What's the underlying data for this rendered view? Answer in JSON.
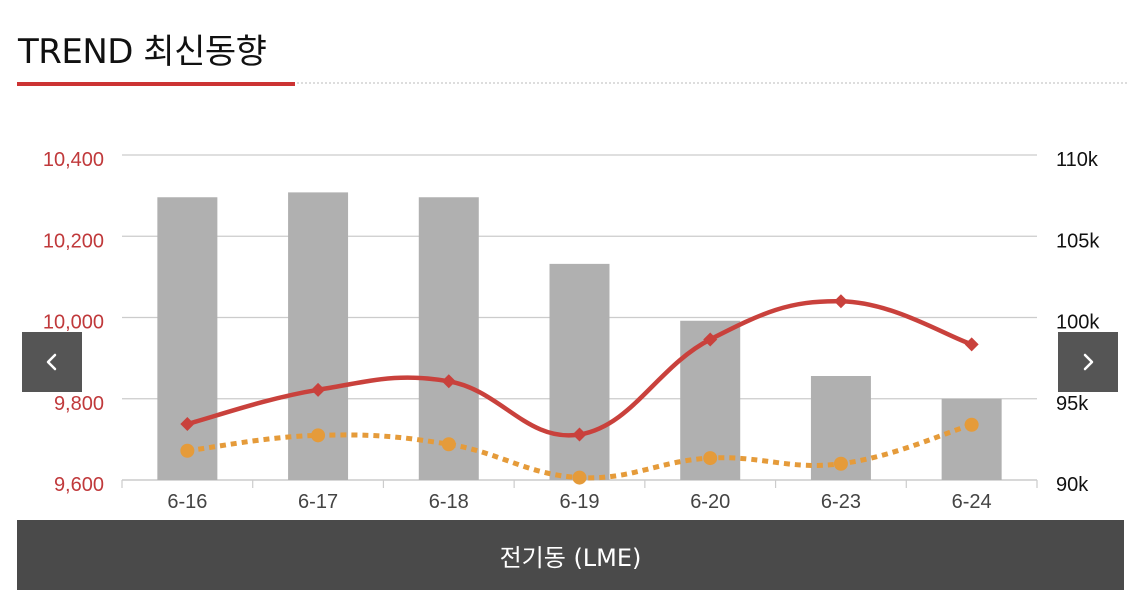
{
  "header": {
    "title": "TREND 최신동향"
  },
  "footer": {
    "label": "전기동 (LME)"
  },
  "colors": {
    "price_line": "#c9413c",
    "dotted_line": "#e59b3a",
    "bars": "#b0b0b0",
    "left_axis_text": "#c0393b",
    "grid": "#cccccc"
  },
  "nav": {
    "prev_icon": "chevron-left-icon",
    "next_icon": "chevron-right-icon"
  },
  "chart_data": {
    "type": "bar",
    "categories": [
      "6-16",
      "6-17",
      "6-18",
      "6-19",
      "6-20",
      "6-23",
      "6-24"
    ],
    "left_axis": {
      "ticks": [
        "10,400",
        "10,200",
        "10,000",
        "9,800",
        "9,600"
      ],
      "range": [
        9600,
        10400
      ]
    },
    "right_axis": {
      "ticks": [
        "110k",
        "105k",
        "100k",
        "95k",
        "90k"
      ],
      "range": [
        90000,
        110000
      ]
    },
    "grid": true,
    "series": [
      {
        "kind": "bar",
        "axis": "right",
        "values": [
          107400,
          107700,
          107400,
          103300,
          99800,
          96400,
          95000
        ]
      },
      {
        "kind": "line",
        "axis": "left",
        "style": "solid",
        "marker": "diamond",
        "values": [
          9738,
          9822,
          9843,
          9712,
          9946,
          10040,
          9934
        ]
      },
      {
        "kind": "line",
        "axis": "left",
        "style": "dotted",
        "marker": "circle",
        "values": [
          9672,
          9710,
          9688,
          9606,
          9654,
          9640,
          9736
        ]
      }
    ]
  }
}
